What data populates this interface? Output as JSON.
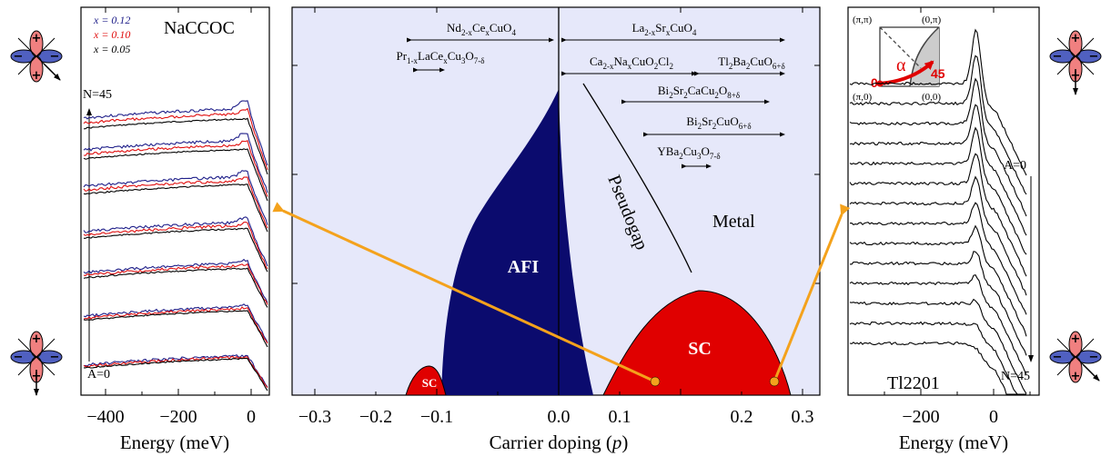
{
  "colors": {
    "afi": "#0b0b6e",
    "sc": "#e00000",
    "bg": "#e6e8fa",
    "arrow": "#f4a21c",
    "blue_curve": "#20208a",
    "red_curve": "#e01010"
  },
  "left_panel": {
    "title": "NaCCOC",
    "legend": [
      {
        "label": "x = 0.12",
        "color": "#20208a"
      },
      {
        "label": "x = 0.10",
        "color": "#e01010"
      },
      {
        "label": "x = 0.05",
        "color": "#000000"
      }
    ],
    "n_label": "N=45",
    "a_label": "A=0",
    "xlabel": "Energy  (meV)",
    "xticks": [
      "−400",
      "−200",
      "0"
    ]
  },
  "right_panel": {
    "title": "Tl2201",
    "a_label": "A=0",
    "n_label": "N=45",
    "xlabel": "Energy  (meV)",
    "xticks": [
      "−200",
      "0"
    ],
    "inset": {
      "pipi": "(π,π)",
      "zeropi": "(0,π)",
      "pizero": "(π,0)",
      "zerozero": "(0,0)",
      "alpha": "α",
      "angle0": "0",
      "angle45": "45"
    }
  },
  "center_panel": {
    "xlabel_main": "Carrier doping",
    "xlabel_var": "p",
    "xticks": [
      "−0.3",
      "−0.2",
      "−0.1",
      "0.0",
      "0.1",
      "0.2",
      "0.3"
    ],
    "labels": {
      "afi": "AFI",
      "sc": "SC",
      "sc_small": "SC",
      "pseudogap": "Pseudogap",
      "metal": "Metal"
    },
    "compounds": [
      {
        "main": "Nd",
        "parts": [
          [
            "Nd",
            "2-x"
          ],
          [
            "Ce",
            ""
          ],
          [
            "",
            "x"
          ],
          [
            "CuO",
            "4"
          ]
        ]
      },
      {
        "text": "La2-xSrxCuO4"
      }
    ]
  },
  "chart_data": {
    "type": "area",
    "title": "",
    "xlabel": "Carrier doping (p)",
    "ylabel": "",
    "xlim": [
      -0.3,
      0.3
    ],
    "regions": [
      {
        "name": "AFI",
        "p_range": [
          -0.14,
          0.04
        ]
      },
      {
        "name": "SC",
        "p_range": [
          0.05,
          0.27
        ],
        "peak_p": 0.16
      },
      {
        "name": "SC",
        "p_range": [
          -0.18,
          -0.13
        ],
        "peak_p": -0.15
      },
      {
        "name": "Pseudogap"
      },
      {
        "name": "Metal"
      }
    ],
    "materials": [
      {
        "name": "Nd2-xCexCuO4",
        "p_range": [
          -0.18,
          -0.01
        ]
      },
      {
        "name": "Pr1-xLaCexCu3O7-δ",
        "p_range": [
          -0.13,
          -0.11
        ]
      },
      {
        "name": "La2-xSrxCuO4",
        "p_range": [
          0.01,
          0.27
        ]
      },
      {
        "name": "Ca2-xNaxCuO2Cl2",
        "p_range": [
          0.01,
          0.15
        ]
      },
      {
        "name": "Tl2Ba2CuO6+δ",
        "p_range": [
          0.15,
          0.27
        ]
      },
      {
        "name": "Bi2Sr2CaCu2O8+δ",
        "p_range": [
          0.08,
          0.25
        ]
      },
      {
        "name": "Bi2Sr2CuO6+δ",
        "p_range": [
          0.11,
          0.27
        ]
      },
      {
        "name": "YBa2Cu3O7-δ",
        "p_range": [
          0.15,
          0.17
        ]
      }
    ],
    "markers": [
      {
        "p": 0.11,
        "links_to": "NaCCOC"
      },
      {
        "p": 0.25,
        "links_to": "Tl2201"
      }
    ]
  }
}
